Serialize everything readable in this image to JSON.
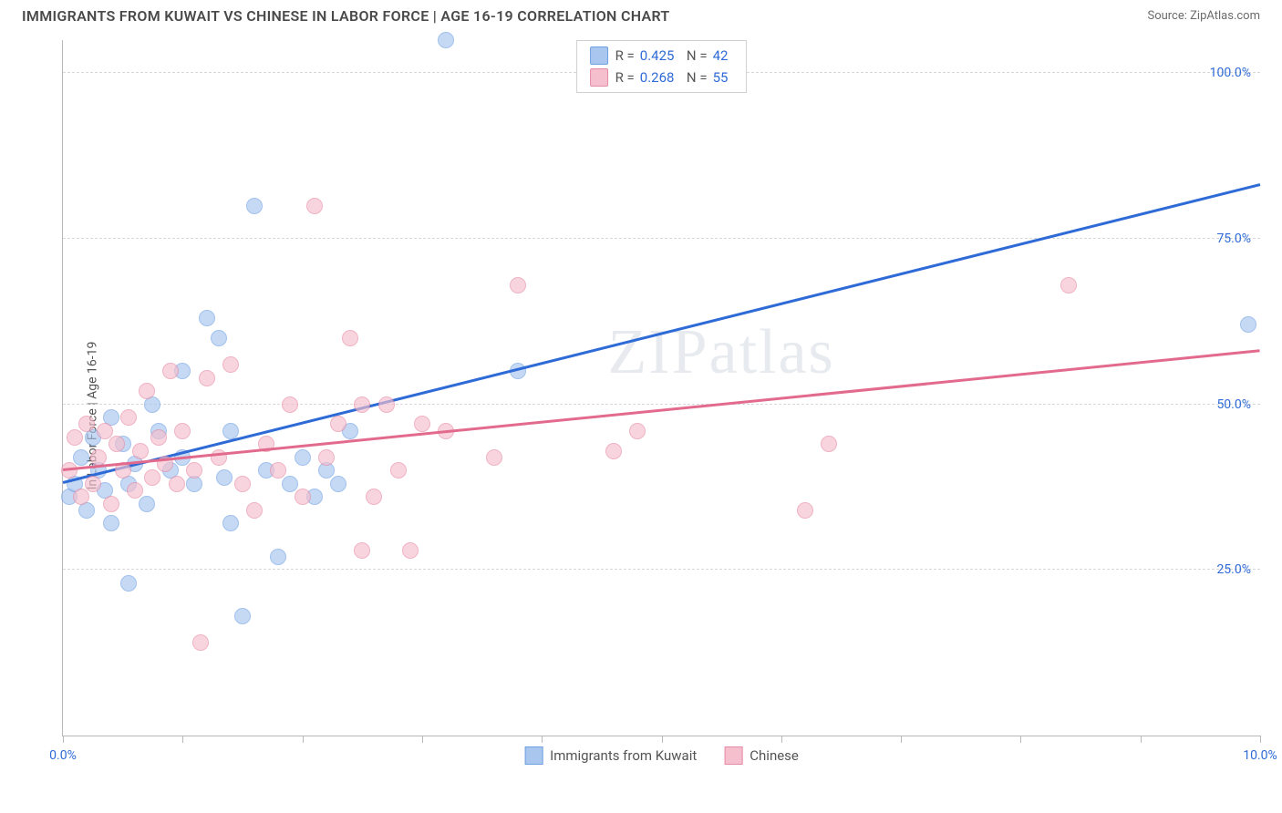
{
  "header": {
    "title": "IMMIGRANTS FROM KUWAIT VS CHINESE IN LABOR FORCE | AGE 16-19 CORRELATION CHART",
    "source": "Source: ZipAtlas.com"
  },
  "chart": {
    "type": "scatter",
    "ylabel": "In Labor Force | Age 16-19",
    "watermark": "ZIPatlas",
    "background_color": "#ffffff",
    "grid_color": "#d8d8d8",
    "axis_color": "#b8b8b8",
    "label_color": "#2e6bd6",
    "xlim": [
      0,
      10
    ],
    "ylim": [
      0,
      105
    ],
    "yticks": [
      {
        "v": 25,
        "label": "25.0%"
      },
      {
        "v": 50,
        "label": "50.0%"
      },
      {
        "v": 75,
        "label": "75.0%"
      },
      {
        "v": 100,
        "label": "100.0%"
      }
    ],
    "xticks": [
      0,
      1,
      2,
      3,
      4,
      5,
      6,
      7,
      8,
      9,
      10
    ],
    "xtick_labels": [
      {
        "v": 0,
        "label": "0.0%"
      },
      {
        "v": 10,
        "label": "10.0%"
      }
    ],
    "series": [
      {
        "key": "kuwait",
        "name": "Immigrants from Kuwait",
        "fill": "#a9c6ef",
        "stroke": "#6fa0e2",
        "line_color": "#2e6bd6",
        "r": 0.425,
        "n": 42,
        "trend": {
          "x1": 0,
          "y1": 38,
          "x2": 10,
          "y2": 83
        },
        "points": [
          [
            0.05,
            36
          ],
          [
            0.1,
            38
          ],
          [
            0.15,
            42
          ],
          [
            0.2,
            34
          ],
          [
            0.25,
            45
          ],
          [
            0.3,
            40
          ],
          [
            0.35,
            37
          ],
          [
            0.4,
            48
          ],
          [
            0.4,
            32
          ],
          [
            0.5,
            44
          ],
          [
            0.55,
            38
          ],
          [
            0.55,
            23
          ],
          [
            0.6,
            41
          ],
          [
            0.7,
            35
          ],
          [
            0.75,
            50
          ],
          [
            0.8,
            46
          ],
          [
            0.9,
            40
          ],
          [
            1.0,
            42
          ],
          [
            1.0,
            55
          ],
          [
            1.1,
            38
          ],
          [
            1.2,
            63
          ],
          [
            1.3,
            60
          ],
          [
            1.35,
            39
          ],
          [
            1.4,
            46
          ],
          [
            1.4,
            32
          ],
          [
            1.5,
            18
          ],
          [
            1.6,
            80
          ],
          [
            1.7,
            40
          ],
          [
            1.8,
            27
          ],
          [
            1.9,
            38
          ],
          [
            2.0,
            42
          ],
          [
            2.1,
            36
          ],
          [
            2.2,
            40
          ],
          [
            2.3,
            38
          ],
          [
            2.4,
            46
          ],
          [
            3.2,
            105
          ],
          [
            3.8,
            55
          ],
          [
            9.9,
            62
          ]
        ]
      },
      {
        "key": "chinese",
        "name": "Chinese",
        "fill": "#f5bfcd",
        "stroke": "#e78aa5",
        "line_color": "#e26a8d",
        "r": 0.268,
        "n": 55,
        "trend": {
          "x1": 0,
          "y1": 40,
          "x2": 10,
          "y2": 58
        },
        "points": [
          [
            0.05,
            40
          ],
          [
            0.1,
            45
          ],
          [
            0.15,
            36
          ],
          [
            0.2,
            47
          ],
          [
            0.25,
            38
          ],
          [
            0.3,
            42
          ],
          [
            0.35,
            46
          ],
          [
            0.4,
            35
          ],
          [
            0.45,
            44
          ],
          [
            0.5,
            40
          ],
          [
            0.55,
            48
          ],
          [
            0.6,
            37
          ],
          [
            0.65,
            43
          ],
          [
            0.7,
            52
          ],
          [
            0.75,
            39
          ],
          [
            0.8,
            45
          ],
          [
            0.85,
            41
          ],
          [
            0.9,
            55
          ],
          [
            0.95,
            38
          ],
          [
            1.0,
            46
          ],
          [
            1.1,
            40
          ],
          [
            1.15,
            14
          ],
          [
            1.2,
            54
          ],
          [
            1.3,
            42
          ],
          [
            1.4,
            56
          ],
          [
            1.5,
            38
          ],
          [
            1.6,
            34
          ],
          [
            1.7,
            44
          ],
          [
            1.8,
            40
          ],
          [
            1.9,
            50
          ],
          [
            2.0,
            36
          ],
          [
            2.1,
            80
          ],
          [
            2.2,
            42
          ],
          [
            2.3,
            47
          ],
          [
            2.4,
            60
          ],
          [
            2.5,
            50
          ],
          [
            2.5,
            28
          ],
          [
            2.6,
            36
          ],
          [
            2.7,
            50
          ],
          [
            2.8,
            40
          ],
          [
            2.9,
            28
          ],
          [
            3.0,
            47
          ],
          [
            3.2,
            46
          ],
          [
            3.6,
            42
          ],
          [
            3.8,
            68
          ],
          [
            4.6,
            43
          ],
          [
            4.8,
            46
          ],
          [
            6.2,
            34
          ],
          [
            6.4,
            44
          ],
          [
            8.4,
            68
          ]
        ]
      }
    ],
    "legend_top": [
      {
        "series": "kuwait",
        "r_label": "R =",
        "r_val": "0.425",
        "n_label": "N =",
        "n_val": "42"
      },
      {
        "series": "chinese",
        "r_label": "R =",
        "r_val": "0.268",
        "n_label": "N =",
        "n_val": "55"
      }
    ]
  }
}
